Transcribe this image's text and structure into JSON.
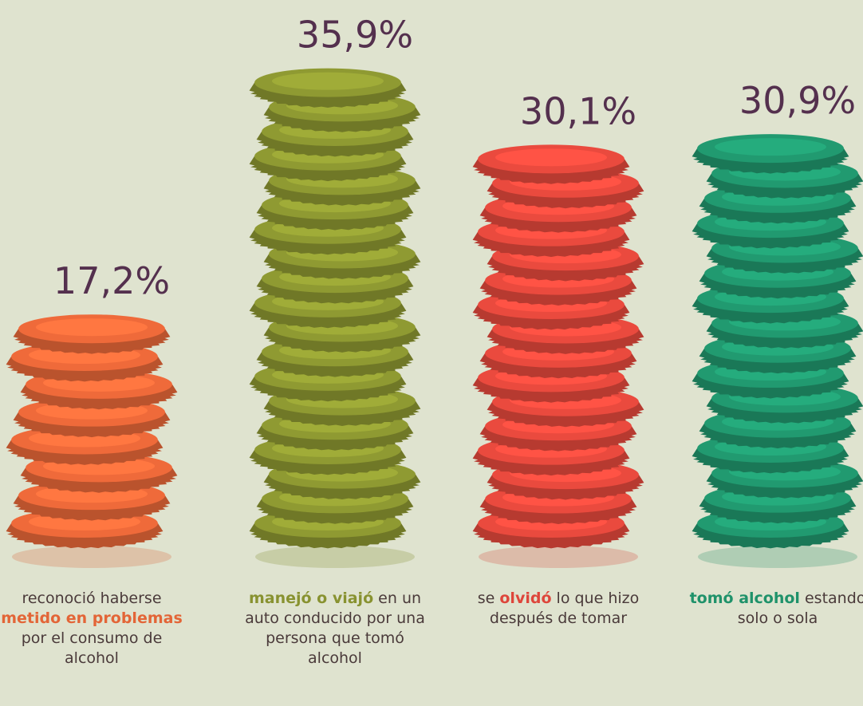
{
  "chart_data": {
    "type": "bar",
    "categories": [
      [
        {
          "text": "reconoció haberse",
          "bold": false
        },
        {
          "text": "metido en problemas",
          "bold": true
        },
        {
          "text": "por el consumo de alcohol",
          "bold": false
        }
      ],
      [
        {
          "text": "manejó o viajó",
          "bold": true
        },
        {
          "text": "en un auto conducido por una persona que tomó alcohol",
          "bold": false
        }
      ],
      [
        {
          "text": "se",
          "bold": false
        },
        {
          "text": "olvidó",
          "bold": true
        },
        {
          "text": "lo que hizo después de tomar",
          "bold": false
        }
      ],
      [
        {
          "text": "tomó alcohol",
          "bold": true
        },
        {
          "text": "estando solo o sola",
          "bold": false
        }
      ]
    ],
    "values": [
      17.2,
      35.9,
      30.1,
      30.9
    ],
    "value_labels": [
      "17,2%",
      "35,9%",
      "30,1%",
      "30,9%"
    ],
    "colors": [
      "#ef6a3a",
      "#8f9a32",
      "#ea4a3e",
      "#219a70"
    ]
  }
}
